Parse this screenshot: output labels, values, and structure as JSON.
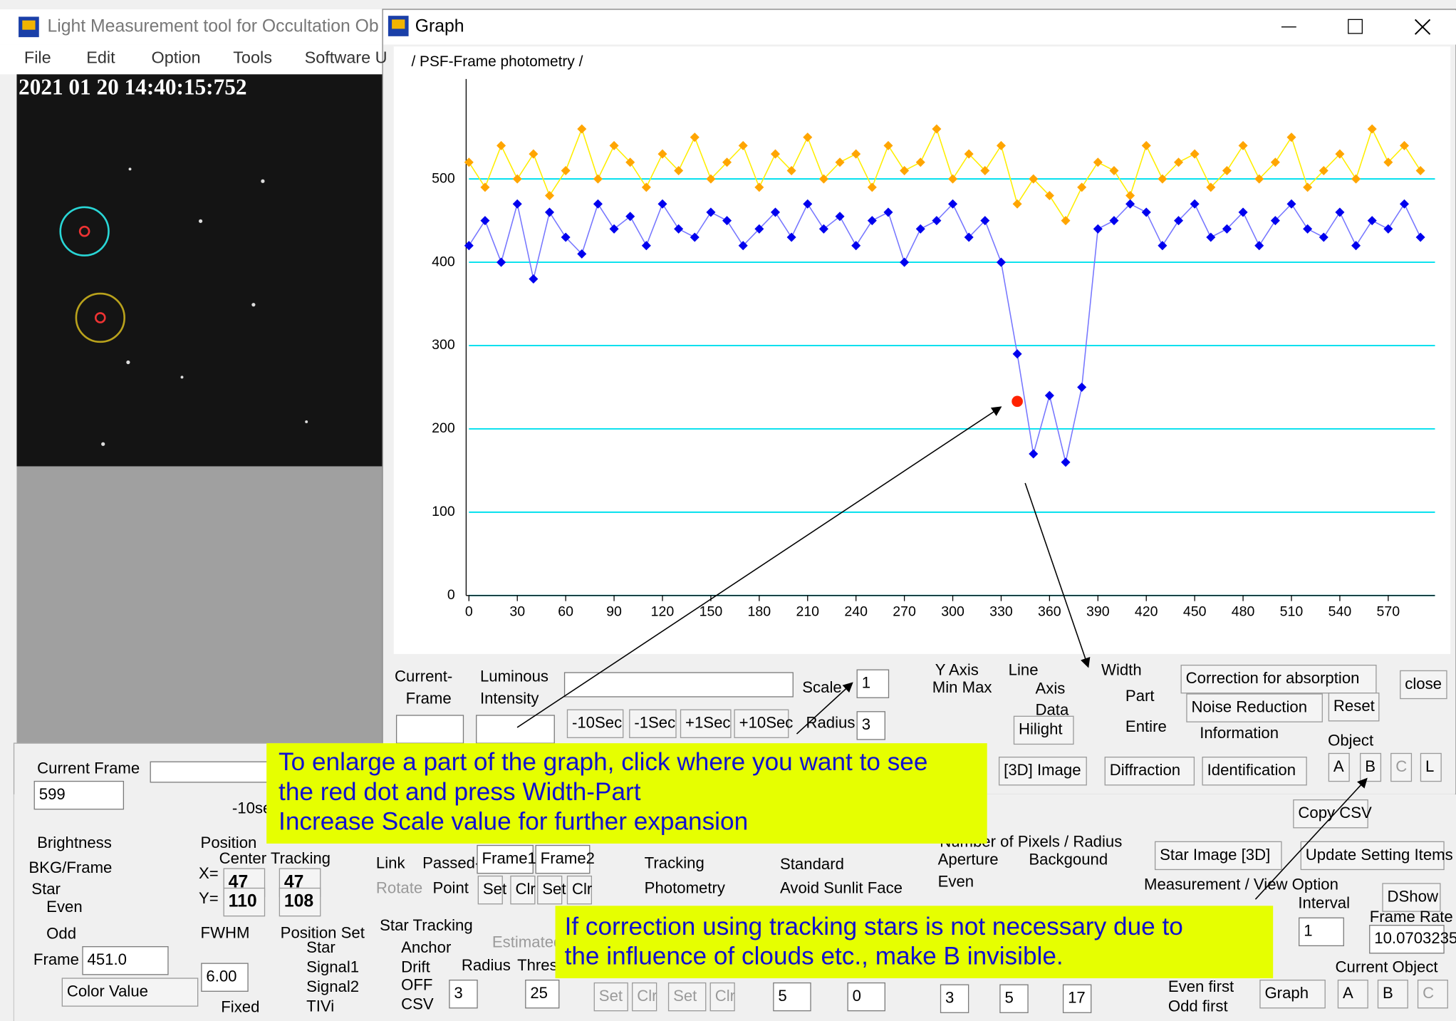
{
  "main_window": {
    "title": "Light Measurement tool for Occultation Ob",
    "menu": [
      "File",
      "Edit",
      "Option",
      "Tools",
      "Software U"
    ],
    "timestamp": "2021 01 20 14:40:15:752"
  },
  "graph_window": {
    "title": "Graph"
  },
  "chart_data": {
    "type": "line",
    "title": "/ PSF-Frame photometry /",
    "x": [
      0,
      10,
      20,
      30,
      40,
      50,
      60,
      70,
      80,
      90,
      100,
      110,
      120,
      130,
      140,
      150,
      160,
      170,
      180,
      190,
      200,
      210,
      220,
      230,
      240,
      250,
      260,
      270,
      280,
      290,
      300,
      310,
      320,
      330,
      340,
      350,
      360,
      370,
      380,
      390,
      400,
      410,
      420,
      430,
      440,
      450,
      460,
      470,
      480,
      490,
      500,
      510,
      520,
      530,
      540,
      550,
      560,
      570,
      580,
      590
    ],
    "series": [
      {
        "color": "#ffa500",
        "line_color": "#ffee00",
        "values": [
          520,
          490,
          540,
          500,
          530,
          480,
          510,
          560,
          500,
          540,
          520,
          490,
          530,
          510,
          550,
          500,
          520,
          540,
          490,
          530,
          510,
          550,
          500,
          520,
          530,
          490,
          540,
          510,
          520,
          560,
          500,
          530,
          510,
          540,
          470,
          500,
          480,
          450,
          490,
          520,
          510,
          480,
          540,
          500,
          520,
          530,
          490,
          510,
          540,
          500,
          520,
          550,
          490,
          510,
          530,
          500,
          560,
          520,
          540,
          510
        ]
      },
      {
        "color": "#0000ee",
        "line_color": "#7777ff",
        "values": [
          420,
          450,
          400,
          470,
          380,
          460,
          430,
          410,
          470,
          440,
          455,
          420,
          470,
          440,
          430,
          460,
          450,
          420,
          440,
          460,
          430,
          470,
          440,
          455,
          420,
          450,
          460,
          400,
          440,
          450,
          470,
          430,
          450,
          400,
          290,
          170,
          240,
          160,
          250,
          440,
          450,
          470,
          460,
          420,
          450,
          470,
          430,
          440,
          460,
          420,
          450,
          470,
          440,
          430,
          460,
          420,
          450,
          440,
          470,
          430
        ]
      }
    ],
    "highlight": {
      "x": 340,
      "y": 233,
      "color": "#ff2200"
    },
    "xlim": [
      0,
      599
    ],
    "ylim": [
      0,
      620
    ],
    "xticks": [
      0,
      30,
      60,
      90,
      120,
      150,
      180,
      210,
      240,
      270,
      300,
      330,
      360,
      390,
      420,
      450,
      480,
      510,
      540,
      570
    ],
    "yticks": [
      0,
      100,
      200,
      300,
      400,
      500
    ],
    "grid": true,
    "grid_color": "#00e0ee"
  },
  "graph_controls": [
    "Current-",
    "Frame",
    "Luminous",
    "Intensity",
    "Scale",
    "1",
    "-10Sec",
    "-1Sec",
    "+1Sec",
    "+10Sec",
    "Radius",
    "3",
    "Y Axis",
    "Min Max",
    "Line",
    "Axis",
    "Data",
    "Hilight",
    "Width",
    "Part",
    "Entire",
    "Correction for absorption",
    "Noise Reduction",
    "Reset",
    "close",
    "Information",
    "Object",
    "A",
    "B",
    "C",
    "L",
    "[3D] Image",
    "Diffraction",
    "Identification",
    "Copy CSV"
  ],
  "main_controls": [
    "Current Frame",
    "599",
    "-10se",
    "Brightness",
    "BKG/Frame",
    "Star",
    "Even",
    "Odd",
    "Frame",
    "451.0",
    "Color Value",
    "Position",
    "Center Tracking",
    "X=",
    "47",
    "47",
    "Y=",
    "110",
    "108",
    "FWHM",
    "6.00",
    "Fixed",
    "Position Set",
    "Star",
    "Signal1",
    "Signal2",
    "TIVi",
    "Link",
    "Passed-",
    "Frame1",
    "Frame2",
    "Rotate",
    "Point",
    "Set",
    "Clr",
    "Set",
    "Clr",
    "Star Tracking",
    "Estimated",
    "Anchor",
    "Drift",
    "OFF",
    "CSV",
    "Radius",
    "Thres",
    "3",
    "25",
    "Set",
    "Clr",
    "Set",
    "Clr",
    "Tracking",
    "Photometry",
    "Standard",
    "Avoid Sunlit Face",
    "5",
    "0",
    "Number of Pixels / Radius",
    "Aperture",
    "Backgound",
    "Even",
    "3",
    "5",
    "17",
    "Star Image [3D]",
    "Update Setting Items",
    "Measurement / View Option",
    "Interval",
    "1",
    "DShow",
    "Frame Rate",
    "10.0703235",
    "Current Object",
    "A",
    "B",
    "C",
    "Even first",
    "Odd first",
    "Graph"
  ],
  "annotations": [
    [
      "To enlarge a part of the graph, click where you want to see",
      "the red dot and press Width-Part",
      "Increase Scale value for further expansion"
    ],
    [
      "If correction using tracking stars is not necessary due to",
      "the influence of clouds etc., make B invisible."
    ]
  ]
}
